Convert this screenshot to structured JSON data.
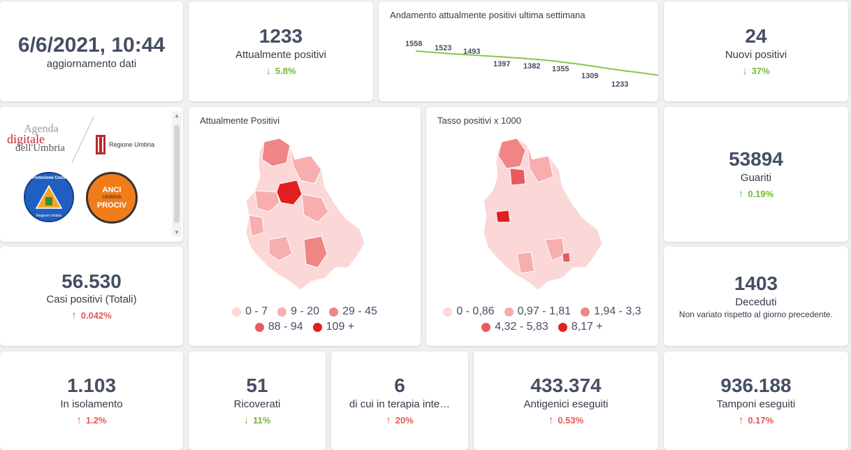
{
  "update": {
    "datetime": "6/6/2021, 10:44",
    "label": "aggiornamento dati"
  },
  "attualmente_positivi": {
    "value": "1233",
    "label": "Attualmente positivi",
    "delta": "5.8%",
    "direction": "down"
  },
  "trend": {
    "title": "Andamento attualmente positivi ultima settimana",
    "labels": [
      "1558",
      "1523",
      "1493",
      "1397",
      "1382",
      "1355",
      "1309",
      "1233"
    ]
  },
  "nuovi_positivi": {
    "value": "24",
    "label": "Nuovi positivi",
    "delta": "37%",
    "direction": "down"
  },
  "logos": {
    "agenda_line1": "Agenda",
    "agenda_line2": "digitale",
    "agenda_line3": "dell'Umbria",
    "regione": "Regione Umbria",
    "protezione": "Protezione Civile",
    "protezione_sub": "Regione Umbria",
    "anci_line1": "ANCI",
    "anci_line2": "UMBRIA",
    "anci_line3": "PROCIV"
  },
  "map_positivi": {
    "title": "Attualmente Positivi",
    "legend": [
      {
        "label": "0 - 7",
        "color": "#fbd7d7"
      },
      {
        "label": "9 - 20",
        "color": "#f6aeae"
      },
      {
        "label": "29 - 45",
        "color": "#ef8585"
      },
      {
        "label": "88 - 94",
        "color": "#e85c5c"
      },
      {
        "label": "109 +",
        "color": "#e02020"
      }
    ]
  },
  "map_tasso": {
    "title": "Tasso positivi x 1000",
    "legend": [
      {
        "label": "0 - 0,86",
        "color": "#fbd7d7"
      },
      {
        "label": "0,97 - 1,81",
        "color": "#f6aeae"
      },
      {
        "label": "1,94 - 3,3",
        "color": "#ef8585"
      },
      {
        "label": "4,32 - 5,83",
        "color": "#e85c5c"
      },
      {
        "label": "8,17 +",
        "color": "#e02020"
      }
    ]
  },
  "guariti": {
    "value": "53894",
    "label": "Guariti",
    "delta": "0.19%",
    "direction": "up"
  },
  "casi_totali": {
    "value": "56.530",
    "label": "Casi positivi (Totali)",
    "delta": "0.042%",
    "direction": "up"
  },
  "deceduti": {
    "value": "1403",
    "label": "Deceduti",
    "note": "Non variato rispetto al giorno precedente."
  },
  "isolamento": {
    "value": "1.103",
    "label": "In isolamento",
    "delta": "1.2%",
    "direction": "up"
  },
  "ricoverati": {
    "value": "51",
    "label": "Ricoverati",
    "delta": "11%",
    "direction": "down"
  },
  "terapia": {
    "value": "6",
    "label": "di cui in terapia inte…",
    "delta": "20%",
    "direction": "up"
  },
  "antigenici": {
    "value": "433.374",
    "label": "Antigenici eseguiti",
    "delta": "0.53%",
    "direction": "up"
  },
  "tamponi": {
    "value": "936.188",
    "label": "Tamponi eseguiti",
    "delta": "0.17%",
    "direction": "up"
  },
  "colors": {
    "down": "#78b83b",
    "up": "#e05a56",
    "line": "#8bc34a",
    "text": "#454f63"
  }
}
